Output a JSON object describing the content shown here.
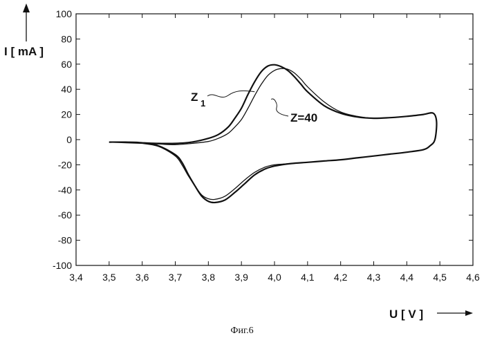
{
  "chart_data": {
    "type": "line",
    "xlabel": "U [ V ]",
    "ylabel": "I [ mA ]",
    "xlim": [
      3.4,
      4.6
    ],
    "ylim": [
      -100,
      100
    ],
    "x_ticks": [
      "3,4",
      "3,5",
      "3,6",
      "3,7",
      "3,8",
      "3,9",
      "4,0",
      "4,1",
      "4,2",
      "4,3",
      "4,4",
      "4,5",
      "4,6"
    ],
    "y_ticks": [
      "100",
      "80",
      "60",
      "40",
      "20",
      "0",
      "-20",
      "-40",
      "-60",
      "-80",
      "-100"
    ],
    "grid": false,
    "annotations": [
      {
        "label_main": "Z",
        "label_sub": "1",
        "point_x": 3.94,
        "point_y": 38
      },
      {
        "label": "Z=40",
        "point_x": 3.99,
        "point_y": 32
      }
    ],
    "caption": "Фиг.6",
    "series": [
      {
        "x": [
          3.5,
          3.55,
          3.6,
          3.65,
          3.7,
          3.75,
          3.8,
          3.83,
          3.86,
          3.88,
          3.9,
          3.92,
          3.94,
          3.96,
          3.98,
          4.0,
          4.02,
          4.04,
          4.06,
          4.08,
          4.1,
          4.15,
          4.2,
          4.25,
          4.3,
          4.35,
          4.4,
          4.45,
          4.48,
          4.49,
          4.485,
          4.47,
          4.45,
          4.4,
          4.35,
          4.3,
          4.25,
          4.2,
          4.15,
          4.1,
          4.05,
          4.0,
          3.97,
          3.94,
          3.91,
          3.88,
          3.85,
          3.82,
          3.8,
          3.78,
          3.76,
          3.74,
          3.72,
          3.7,
          3.65,
          3.6,
          3.55,
          3.5
        ],
        "y": [
          -2,
          -2,
          -2.5,
          -3,
          -3,
          -2,
          1,
          4,
          10,
          17,
          25,
          36,
          46,
          54,
          58.5,
          59.5,
          58,
          55,
          50,
          44,
          38,
          27,
          21,
          18,
          17,
          17.5,
          18.5,
          20,
          21,
          14,
          0,
          -5,
          -8,
          -10,
          -11.5,
          -13,
          -14.5,
          -16,
          -17,
          -18,
          -19,
          -21,
          -23.5,
          -28,
          -35,
          -42,
          -48,
          -50,
          -49,
          -45,
          -37,
          -28,
          -18,
          -12,
          -5,
          -2.5,
          -2,
          -2
        ]
      },
      {
        "x": [
          3.5,
          3.55,
          3.6,
          3.65,
          3.7,
          3.75,
          3.8,
          3.83,
          3.86,
          3.88,
          3.9,
          3.92,
          3.94,
          3.96,
          3.98,
          4.0,
          4.02,
          4.04,
          4.06,
          4.08,
          4.1,
          4.15,
          4.2,
          4.25,
          4.3,
          4.35,
          4.4,
          4.45,
          4.48,
          4.49,
          4.485,
          4.47,
          4.45,
          4.4,
          4.35,
          4.3,
          4.25,
          4.2,
          4.15,
          4.1,
          4.05,
          4.0,
          3.97,
          3.94,
          3.91,
          3.88,
          3.85,
          3.82,
          3.8,
          3.78,
          3.76,
          3.74,
          3.72,
          3.7,
          3.65,
          3.6,
          3.55,
          3.5
        ],
        "y": [
          -2,
          -2.5,
          -3,
          -3.5,
          -4,
          -3,
          -1.5,
          1,
          5,
          10,
          16,
          25,
          35,
          44,
          51,
          55,
          56.5,
          56,
          53,
          48,
          42,
          30,
          22,
          18.5,
          17,
          17.5,
          18.5,
          20,
          21,
          14,
          0,
          -5,
          -8,
          -10,
          -11.5,
          -13,
          -14.5,
          -16,
          -17,
          -18,
          -19,
          -20,
          -22,
          -26,
          -32,
          -39,
          -45,
          -47.5,
          -47,
          -44,
          -37,
          -29,
          -20,
          -13,
          -5.5,
          -3,
          -2.5,
          -2
        ]
      }
    ]
  }
}
